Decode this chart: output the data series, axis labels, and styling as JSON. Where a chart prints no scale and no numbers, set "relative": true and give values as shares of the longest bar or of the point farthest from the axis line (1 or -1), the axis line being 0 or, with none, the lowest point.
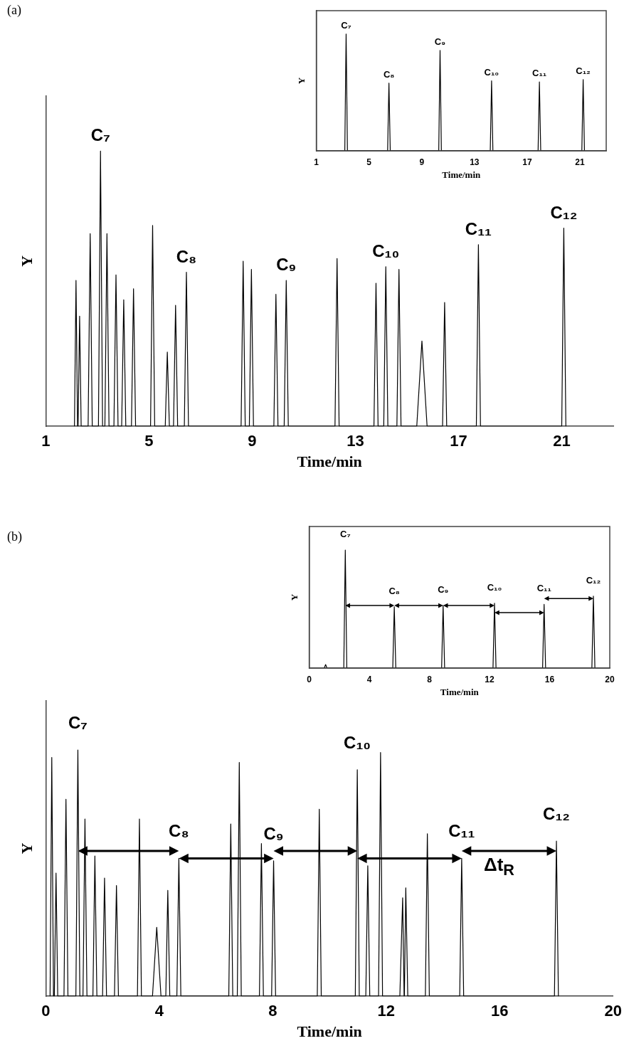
{
  "chart_data": [
    {
      "type": "line",
      "xlabel": "Time/min",
      "ylabel": "Y",
      "relative": true,
      "xlim": [
        1,
        23
      ],
      "xticks": [
        1,
        5,
        9,
        13,
        17,
        21
      ],
      "x": [
        2.11,
        2.17,
        2.23,
        2.25,
        2.31,
        2.37,
        2.64,
        2.72,
        2.8,
        3.04,
        3.12,
        3.2,
        3.29,
        3.37,
        3.45,
        3.64,
        3.72,
        3.8,
        3.94,
        4.02,
        4.1,
        4.32,
        4.4,
        4.48,
        5.06,
        5.14,
        5.22,
        5.63,
        5.71,
        5.79,
        5.95,
        6.03,
        6.11,
        6.37,
        6.45,
        6.53,
        8.57,
        8.65,
        8.73,
        8.89,
        8.97,
        9.05,
        9.84,
        9.92,
        10.0,
        10.24,
        10.32,
        10.4,
        12.21,
        12.29,
        12.37,
        13.72,
        13.8,
        13.88,
        14.1,
        14.18,
        14.26,
        14.61,
        14.69,
        14.77,
        15.38,
        15.58,
        15.78,
        16.38,
        16.46,
        16.54,
        17.69,
        17.77,
        17.85,
        21.0,
        21.08,
        21.16
      ],
      "series": [
        {
          "color": "#000000",
          "values": [
            0,
            0.53,
            0,
            0,
            0.4,
            0,
            0,
            0.7,
            0,
            0,
            1,
            0,
            0,
            0.7,
            0,
            0,
            0.55,
            0,
            0,
            0.46,
            0,
            0,
            0.5,
            0,
            0,
            0.73,
            0,
            0,
            0.27,
            0,
            0,
            0.44,
            0,
            0,
            0.56,
            0,
            0,
            0.6,
            0,
            0,
            0.57,
            0,
            0,
            0.48,
            0,
            0,
            0.53,
            0,
            0,
            0.61,
            0,
            0,
            0.52,
            0,
            0,
            0.58,
            0,
            0,
            0.57,
            0,
            0,
            0.31,
            0,
            0,
            0.45,
            0,
            0,
            0.66,
            0,
            0,
            0.72,
            0
          ]
        }
      ],
      "annotations": [
        {
          "text": "C₇",
          "x": 3.12,
          "y": 1
        },
        {
          "text": "C₈",
          "x": 6.45,
          "y": 0.56
        },
        {
          "text": "C₉",
          "x": 10.32,
          "y": 0.53
        },
        {
          "text": "C₁₀",
          "x": 14.18,
          "y": 0.58
        },
        {
          "text": "C₁₁",
          "x": 17.77,
          "y": 0.66
        },
        {
          "text": "C₁₂",
          "x": 21.08,
          "y": 0.72
        },
        "(a)"
      ]
    },
    {
      "type": "line",
      "xlabel": "Time/min",
      "ylabel": "Y",
      "relative": true,
      "xlim": [
        1,
        23
      ],
      "xticks": [
        1,
        5,
        9,
        13,
        17,
        21
      ],
      "x": [
        3.16,
        3.26,
        3.36,
        6.41,
        6.51,
        6.61,
        10.29,
        10.39,
        10.49,
        14.2,
        14.3,
        14.4,
        17.83,
        17.93,
        18.03,
        21.15,
        21.25,
        21.35
      ],
      "series": [
        {
          "color": "#000000",
          "values": [
            0,
            1,
            0,
            0,
            0.58,
            0,
            0,
            0.86,
            0,
            0,
            0.6,
            0,
            0,
            0.59,
            0,
            0,
            0.61,
            0
          ]
        }
      ],
      "annotations": [
        {
          "text": "C₇",
          "x": 3.26,
          "y": 1
        },
        {
          "text": "C₈",
          "x": 6.51,
          "y": 0.58
        },
        {
          "text": "C₉",
          "x": 10.39,
          "y": 0.86
        },
        {
          "text": "C₁₀",
          "x": 14.3,
          "y": 0.6
        },
        {
          "text": "C₁₁",
          "x": 17.93,
          "y": 0.59
        },
        {
          "text": "C₁₂",
          "x": 21.25,
          "y": 0.61
        }
      ]
    },
    {
      "type": "line",
      "xlabel": "Time/min",
      "ylabel": "Y",
      "relative": true,
      "xlim": [
        0,
        20
      ],
      "xticks": [
        0,
        4,
        8,
        12,
        16,
        20
      ],
      "x": [
        1.0,
        1.09,
        1.18,
        2.3,
        2.4,
        2.5,
        5.56,
        5.66,
        5.76,
        8.81,
        8.91,
        9.01,
        12.23,
        12.33,
        12.43,
        15.53,
        15.63,
        15.73,
        18.81,
        18.91,
        19.01
      ],
      "series": [
        {
          "color": "#000000",
          "values": [
            0,
            0.03,
            0,
            0,
            1,
            0,
            0,
            0.52,
            0,
            0,
            0.53,
            0,
            0,
            0.55,
            0,
            0,
            0.54,
            0,
            0,
            0.61,
            0
          ]
        }
      ],
      "annotations": [
        {
          "text": "C₇",
          "x": 2.4,
          "y": 1
        },
        {
          "text": "C₈",
          "x": 5.66,
          "y": 0.52
        },
        {
          "text": "C₉",
          "x": 8.91,
          "y": 0.53
        },
        {
          "text": "C₁₀",
          "x": 12.33,
          "y": 0.55
        },
        {
          "text": "C₁₁",
          "x": 15.63,
          "y": 0.54
        },
        {
          "text": "C₁₂",
          "x": 18.91,
          "y": 0.61
        }
      ]
    },
    {
      "type": "line",
      "xlabel": "Time/min",
      "ylabel": "Y",
      "relative": true,
      "xlim": [
        0,
        20
      ],
      "xticks": [
        0,
        4,
        8,
        12,
        16,
        20
      ],
      "x": [
        0.15,
        0.21,
        0.27,
        0.3,
        0.36,
        0.42,
        0.64,
        0.71,
        0.78,
        1.06,
        1.13,
        1.2,
        1.31,
        1.38,
        1.45,
        1.66,
        1.73,
        1.8,
        2.0,
        2.07,
        2.14,
        2.42,
        2.49,
        2.56,
        3.23,
        3.3,
        3.37,
        3.76,
        3.91,
        4.06,
        4.23,
        4.3,
        4.37,
        4.62,
        4.69,
        4.76,
        6.45,
        6.52,
        6.59,
        6.75,
        6.82,
        6.89,
        7.53,
        7.6,
        7.67,
        7.96,
        8.03,
        8.1,
        9.57,
        9.64,
        9.71,
        10.91,
        10.98,
        11.05,
        11.28,
        11.35,
        11.42,
        11.73,
        11.8,
        11.87,
        12.48,
        12.58,
        12.63,
        12.64,
        12.69,
        12.76,
        13.38,
        13.45,
        13.52,
        14.59,
        14.66,
        14.73,
        17.93,
        18.0,
        18.07
      ],
      "series": [
        {
          "color": "#000000",
          "values": [
            0,
            0.97,
            0,
            0,
            0.5,
            0,
            0,
            0.8,
            0,
            0,
            1,
            0,
            0,
            0.72,
            0,
            0,
            0.57,
            0,
            0,
            0.48,
            0,
            0,
            0.45,
            0,
            0,
            0.72,
            0,
            0,
            0.28,
            0,
            0,
            0.43,
            0,
            0,
            0.56,
            0,
            0,
            0.7,
            0,
            0,
            0.95,
            0,
            0,
            0.62,
            0,
            0,
            0.55,
            0,
            0,
            0.76,
            0,
            0,
            0.92,
            0,
            0,
            0.53,
            0,
            0,
            0.99,
            0,
            0,
            0.4,
            0,
            0,
            0.44,
            0,
            0,
            0.66,
            0,
            0,
            0.56,
            0,
            0,
            0.63,
            0
          ]
        }
      ],
      "annotations": [
        {
          "text": "C₇",
          "x": 1.13,
          "y": 1
        },
        {
          "text": "C₈",
          "x": 4.69,
          "y": 0.56
        },
        {
          "text": "C₉",
          "x": 8.03,
          "y": 0.55
        },
        {
          "text": "C₁₀",
          "x": 10.98,
          "y": 0.92
        },
        {
          "text": "C₁₁",
          "x": 14.66,
          "y": 0.56
        },
        {
          "text": "C₁₂",
          "x": 18.0,
          "y": 0.63
        },
        "(b)",
        "Δt$_{R}$"
      ]
    }
  ]
}
